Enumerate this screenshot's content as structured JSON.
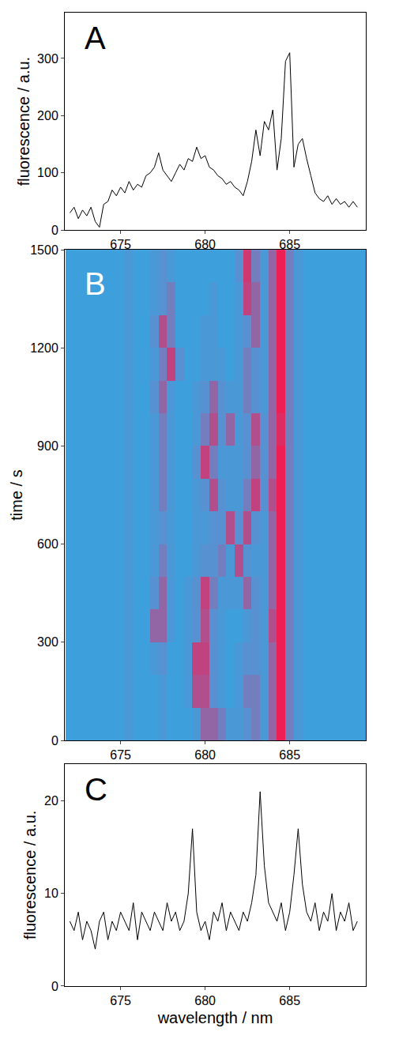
{
  "chart_data": [
    {
      "type": "line",
      "annotations": [
        "A"
      ],
      "y_label": "fluorescence / a.u.",
      "color": "#000000",
      "x": [
        672,
        672.25,
        672.5,
        672.75,
        673,
        673.25,
        673.5,
        673.75,
        674,
        674.25,
        674.5,
        674.75,
        675,
        675.25,
        675.5,
        675.75,
        676,
        676.25,
        676.5,
        676.75,
        677,
        677.25,
        677.5,
        677.75,
        678,
        678.25,
        678.5,
        678.75,
        679,
        679.25,
        679.5,
        679.75,
        680,
        680.25,
        680.5,
        680.75,
        681,
        681.25,
        681.5,
        681.75,
        682,
        682.25,
        682.5,
        682.75,
        683,
        683.25,
        683.5,
        683.75,
        684,
        684.25,
        684.5,
        684.75,
        685,
        685.25,
        685.5,
        685.75,
        686,
        686.25,
        686.5,
        686.75,
        687,
        687.25,
        687.5,
        687.75,
        688,
        688.25,
        688.5,
        688.75,
        689
      ],
      "values": [
        30,
        40,
        20,
        35,
        25,
        40,
        15,
        5,
        45,
        50,
        70,
        60,
        75,
        65,
        85,
        70,
        80,
        75,
        95,
        100,
        110,
        135,
        105,
        95,
        85,
        100,
        115,
        105,
        125,
        120,
        145,
        125,
        130,
        110,
        105,
        95,
        90,
        80,
        85,
        75,
        70,
        60,
        85,
        120,
        175,
        130,
        190,
        175,
        210,
        105,
        160,
        295,
        310,
        110,
        150,
        160,
        125,
        95,
        65,
        55,
        50,
        60,
        45,
        55,
        45,
        50,
        40,
        50,
        40
      ],
      "xlim": [
        671.7,
        689.5
      ],
      "xticks": [
        675,
        680,
        685
      ],
      "ylim": [
        0,
        380
      ],
      "yticks": [
        0,
        100,
        200,
        300
      ]
    },
    {
      "type": "heatmap",
      "annotations": [
        "B"
      ],
      "y_label": "time / s",
      "x": [
        672,
        672.5,
        673,
        673.5,
        674,
        674.5,
        675,
        675.5,
        676,
        676.5,
        677,
        677.5,
        678,
        678.5,
        679,
        679.5,
        680,
        680.5,
        681,
        681.5,
        682,
        682.5,
        683,
        683.5,
        684,
        684.5,
        685,
        685.5,
        686,
        686.5,
        687,
        687.5,
        688,
        688.5,
        689,
        689.5
      ],
      "y": [
        50,
        150,
        250,
        350,
        450,
        550,
        650,
        750,
        850,
        950,
        1050,
        1150,
        1250,
        1350,
        1450
      ],
      "cells": [
        [
          0,
          0,
          0,
          0,
          0,
          0,
          0,
          1,
          0,
          0,
          0,
          1,
          0,
          0,
          0,
          1,
          4,
          4,
          3,
          1,
          1,
          2,
          3,
          1,
          4,
          9,
          3,
          1,
          0,
          0,
          0,
          0,
          0,
          0,
          0,
          0
        ],
        [
          0,
          0,
          0,
          0,
          0,
          0,
          0,
          1,
          0,
          0,
          0,
          1,
          0,
          0,
          1,
          5,
          5,
          2,
          1,
          0,
          1,
          3,
          3,
          1,
          4,
          9,
          3,
          1,
          0,
          0,
          0,
          0,
          0,
          0,
          0,
          0
        ],
        [
          0,
          0,
          0,
          0,
          0,
          0,
          0,
          1,
          0,
          0,
          1,
          2,
          0,
          0,
          1,
          6,
          6,
          2,
          1,
          0,
          1,
          2,
          2,
          1,
          4,
          9,
          3,
          1,
          0,
          0,
          0,
          0,
          0,
          0,
          0,
          0
        ],
        [
          0,
          0,
          0,
          0,
          0,
          0,
          0,
          1,
          0,
          0,
          4,
          4,
          1,
          0,
          1,
          2,
          5,
          2,
          1,
          0,
          0,
          1,
          2,
          1,
          5,
          9,
          3,
          1,
          0,
          0,
          0,
          0,
          0,
          0,
          0,
          0
        ],
        [
          0,
          0,
          0,
          0,
          0,
          0,
          0,
          1,
          0,
          0,
          2,
          4,
          1,
          0,
          1,
          2,
          6,
          3,
          1,
          1,
          1,
          4,
          2,
          1,
          4,
          9,
          3,
          1,
          0,
          0,
          0,
          0,
          0,
          0,
          0,
          0
        ],
        [
          0,
          0,
          0,
          0,
          0,
          0,
          0,
          1,
          0,
          0,
          1,
          3,
          1,
          0,
          0,
          1,
          2,
          2,
          3,
          1,
          5,
          2,
          1,
          1,
          4,
          9,
          3,
          1,
          0,
          0,
          0,
          0,
          0,
          0,
          0,
          0
        ],
        [
          0,
          0,
          0,
          0,
          0,
          0,
          0,
          1,
          0,
          0,
          1,
          2,
          1,
          0,
          0,
          1,
          1,
          2,
          2,
          5,
          2,
          5,
          2,
          1,
          4,
          9,
          3,
          1,
          0,
          0,
          0,
          0,
          0,
          0,
          0,
          0
        ],
        [
          0,
          0,
          0,
          0,
          0,
          0,
          0,
          1,
          0,
          0,
          1,
          3,
          1,
          0,
          0,
          1,
          2,
          5,
          2,
          1,
          1,
          3,
          6,
          2,
          5,
          9,
          3,
          1,
          0,
          0,
          0,
          0,
          0,
          0,
          0,
          0
        ],
        [
          0,
          0,
          0,
          0,
          0,
          0,
          0,
          1,
          0,
          0,
          1,
          3,
          1,
          0,
          0,
          2,
          6,
          3,
          1,
          1,
          1,
          2,
          4,
          2,
          4,
          9,
          3,
          1,
          0,
          0,
          0,
          0,
          0,
          0,
          0,
          0
        ],
        [
          0,
          0,
          0,
          0,
          0,
          0,
          0,
          1,
          0,
          0,
          1,
          3,
          1,
          0,
          0,
          1,
          3,
          5,
          2,
          4,
          1,
          2,
          5,
          2,
          4,
          8,
          3,
          1,
          0,
          0,
          0,
          0,
          0,
          0,
          0,
          0
        ],
        [
          0,
          0,
          0,
          0,
          0,
          0,
          0,
          1,
          0,
          0,
          2,
          4,
          1,
          0,
          0,
          1,
          2,
          4,
          2,
          1,
          1,
          3,
          2,
          1,
          4,
          9,
          3,
          1,
          0,
          0,
          0,
          0,
          0,
          0,
          0,
          0
        ],
        [
          0,
          0,
          0,
          0,
          0,
          0,
          0,
          1,
          0,
          0,
          1,
          3,
          6,
          2,
          0,
          0,
          1,
          1,
          1,
          0,
          1,
          3,
          2,
          1,
          4,
          9,
          3,
          1,
          0,
          0,
          0,
          0,
          0,
          0,
          0,
          0
        ],
        [
          0,
          0,
          0,
          0,
          0,
          0,
          0,
          1,
          0,
          0,
          2,
          5,
          3,
          0,
          0,
          0,
          1,
          1,
          0,
          0,
          1,
          2,
          4,
          1,
          4,
          9,
          3,
          1,
          0,
          0,
          0,
          0,
          0,
          0,
          0,
          0
        ],
        [
          0,
          0,
          0,
          0,
          0,
          0,
          0,
          1,
          0,
          0,
          1,
          2,
          3,
          0,
          0,
          0,
          0,
          1,
          0,
          0,
          1,
          6,
          4,
          1,
          4,
          9,
          3,
          1,
          0,
          0,
          0,
          0,
          0,
          0,
          0,
          0
        ],
        [
          0,
          0,
          0,
          0,
          0,
          0,
          0,
          1,
          0,
          0,
          1,
          2,
          1,
          0,
          0,
          0,
          0,
          0,
          0,
          0,
          2,
          7,
          3,
          1,
          4,
          9,
          3,
          1,
          0,
          0,
          0,
          0,
          0,
          0,
          0,
          0
        ]
      ],
      "zlim": [
        0,
        9
      ],
      "xlim": [
        671.7,
        689.5
      ],
      "xticks": [
        675,
        680,
        685
      ],
      "ylim": [
        0,
        1500
      ],
      "yticks": [
        0,
        300,
        600,
        900,
        1200,
        1500
      ]
    },
    {
      "type": "line",
      "annotations": [
        "C"
      ],
      "y_label": "fluorescence / a.u.",
      "x_label": "wavelength / nm",
      "color": "#000000",
      "x": [
        672,
        672.25,
        672.5,
        672.75,
        673,
        673.25,
        673.5,
        673.75,
        674,
        674.25,
        674.5,
        674.75,
        675,
        675.25,
        675.5,
        675.75,
        676,
        676.25,
        676.5,
        676.75,
        677,
        677.25,
        677.5,
        677.75,
        678,
        678.25,
        678.5,
        678.75,
        679,
        679.25,
        679.5,
        679.75,
        680,
        680.25,
        680.5,
        680.75,
        681,
        681.25,
        681.5,
        681.75,
        682,
        682.25,
        682.5,
        682.75,
        683,
        683.25,
        683.5,
        683.75,
        684,
        684.25,
        684.5,
        684.75,
        685,
        685.25,
        685.5,
        685.75,
        686,
        686.25,
        686.5,
        686.75,
        687,
        687.25,
        687.5,
        687.75,
        688,
        688.25,
        688.5,
        688.75,
        689
      ],
      "values": [
        7,
        6,
        8,
        5,
        7,
        6,
        4,
        7,
        8,
        5,
        7,
        6,
        8,
        7,
        6,
        9,
        5,
        8,
        7,
        6,
        8,
        7,
        6,
        9,
        7,
        8,
        6,
        7,
        10,
        17,
        8,
        6,
        7,
        5,
        8,
        7,
        9,
        6,
        8,
        7,
        6,
        8,
        7,
        9,
        12,
        21,
        13,
        9,
        8,
        7,
        9,
        6,
        8,
        12,
        17,
        11,
        8,
        7,
        9,
        6,
        8,
        7,
        10,
        6,
        8,
        7,
        9,
        6,
        7
      ],
      "xlim": [
        671.7,
        689.5
      ],
      "xticks": [
        675,
        680,
        685
      ],
      "ylim": [
        0,
        24
      ],
      "yticks": [
        0,
        10,
        20
      ]
    }
  ]
}
